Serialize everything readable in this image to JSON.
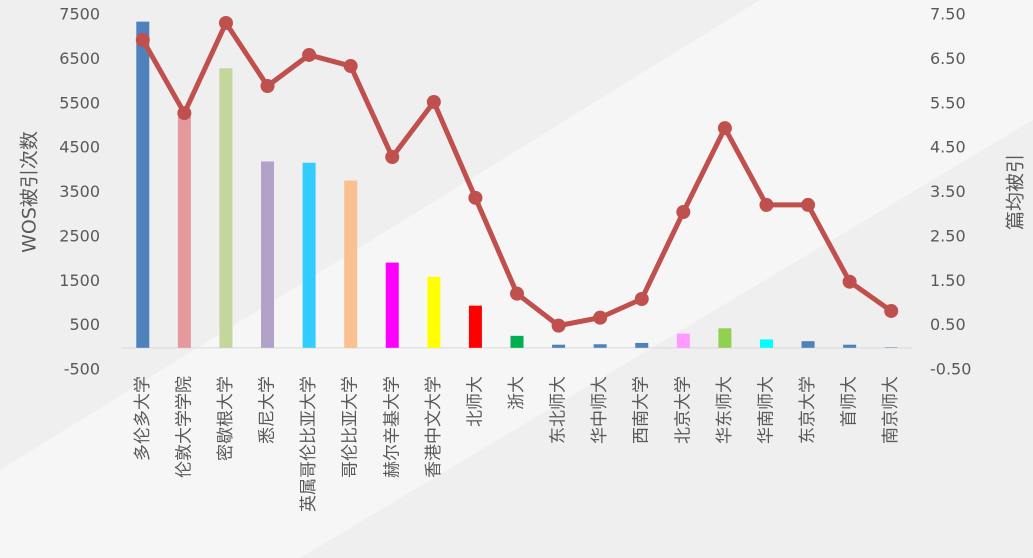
{
  "chart_data": {
    "type": "bar",
    "categories": [
      "多伦多大学",
      "伦敦大学学院",
      "密歇根大学",
      "悉尼大学",
      "英属哥伦比亚大学",
      "哥伦比亚大学",
      "赫尔辛基大学",
      "香港中文大学",
      "北师大",
      "浙大",
      "东北师大",
      "华中师大",
      "西南大学",
      "北京大学",
      "华东师大",
      "华南师大",
      "东京大学",
      "首师大",
      "南京师大"
    ],
    "series": [
      {
        "type": "bar",
        "axis": "y",
        "colors": [
          "#4f81bd",
          "#e6999c",
          "#c3d69b",
          "#b3a2c7",
          "#33ccff",
          "#fac090",
          "#ff00ff",
          "#ffff00",
          "#ff0000",
          "#00b050",
          "#4f81bd",
          "#4f81bd",
          "#4f81bd",
          "#ff99ff",
          "#92d050",
          "#00ffff",
          "#4f81bd",
          "#4f81bd",
          "#4f81bd"
        ],
        "values": [
          7350,
          5200,
          6300,
          4200,
          4170,
          3770,
          1920,
          1600,
          950,
          270,
          70,
          80,
          110,
          320,
          440,
          190,
          150,
          70,
          10
        ]
      },
      {
        "type": "line",
        "axis": "y2",
        "color": "#c0504d",
        "values": [
          6.94,
          5.29,
          7.32,
          5.9,
          6.6,
          6.35,
          4.3,
          5.54,
          3.38,
          1.22,
          0.5,
          0.68,
          1.1,
          3.06,
          4.95,
          3.22,
          3.22,
          1.49,
          0.83
        ]
      }
    ],
    "ylabel": "WOS被引次数",
    "y2label": "篇均被引",
    "ylim": [
      -500,
      7500
    ],
    "yticks": [
      -500,
      500,
      1500,
      2500,
      3500,
      4500,
      5500,
      6500,
      7500
    ],
    "y2lim": [
      -0.5,
      7.5
    ],
    "y2ticks": [
      {
        "value": -0.5,
        "label": "-0.50"
      },
      {
        "value": 0.5,
        "label": "0.50"
      },
      {
        "value": 1.5,
        "label": "1.50"
      },
      {
        "value": 2.5,
        "label": "2.50"
      },
      {
        "value": 3.5,
        "label": "3.50"
      },
      {
        "value": 4.5,
        "label": "4.50"
      },
      {
        "value": 5.5,
        "label": "5.50"
      },
      {
        "value": 6.5,
        "label": "6.50"
      },
      {
        "value": 7.5,
        "label": "7.50"
      }
    ],
    "grid": false
  }
}
